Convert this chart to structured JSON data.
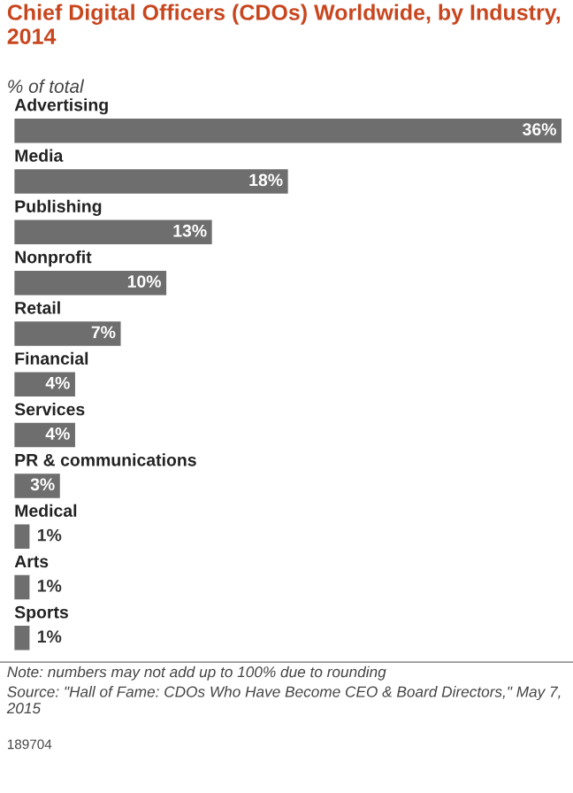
{
  "chart_data": {
    "type": "bar",
    "orientation": "horizontal",
    "title": "Chief Digital Officers (CDOs) Worldwide, by Industry, 2014",
    "subtitle": "% of total",
    "categories": [
      "Advertising",
      "Media",
      "Publishing",
      "Nonprofit",
      "Retail",
      "Financial",
      "Services",
      "PR & communications",
      "Medical",
      "Arts",
      "Sports"
    ],
    "values": [
      36,
      18,
      13,
      10,
      7,
      4,
      4,
      3,
      1,
      1,
      1
    ],
    "value_labels": [
      "36%",
      "18%",
      "13%",
      "10%",
      "7%",
      "4%",
      "4%",
      "3%",
      "1%",
      "1%",
      "1%"
    ],
    "color": "#6e6e6e",
    "annotations": [
      "Note: numbers may not add up to 100% due to rounding",
      "Source: \"Hall of Fame: CDOs Who Have Become CEO & Board Directors,\" May 7, 2015",
      "189704"
    ],
    "legend": false
  }
}
